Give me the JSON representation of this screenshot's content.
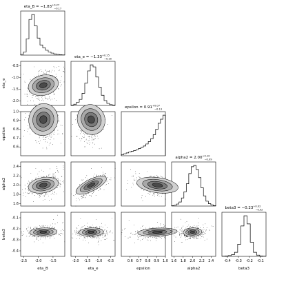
{
  "chart_data": {
    "type": "corner",
    "params": [
      {
        "name": "eta_B",
        "range": [
          -2.6,
          -1.1
        ],
        "ticks": [
          -2.5,
          -2.0,
          -1.5,
          -1.0
        ],
        "tick_labels": [
          "-2.5",
          "-2.0",
          "-1.5",
          "-1.0"
        ],
        "median": -1.83,
        "plus": 0.27,
        "minus": 0.17,
        "title_main": "eta_B = −1.83",
        "title_sup": "+0.27",
        "title_sub": "−0.17"
      },
      {
        "name": "eta_e",
        "range": [
          -2.2,
          -0.3
        ],
        "ticks": [
          -2.0,
          -1.5,
          -1.0,
          -0.5
        ],
        "tick_labels": [
          "-2.0",
          "-1.5",
          "-1.0",
          "-0.5"
        ],
        "median": -1.33,
        "plus": 0.25,
        "minus": 0.25,
        "title_main": "eta_e = −1.33",
        "title_sup": "+0.25",
        "title_sub": "−0.25"
      },
      {
        "name": "epsilon",
        "range": [
          0.5,
          1.0
        ],
        "ticks": [
          0.6,
          0.7,
          0.8,
          0.9,
          1.0
        ],
        "tick_labels": [
          "0.6",
          "0.7",
          "0.8",
          "0.9",
          "1.0"
        ],
        "median": 0.91,
        "plus": 0.07,
        "minus": 0.13,
        "title_main": "epsilon = 0.91",
        "title_sup": "+0.07",
        "title_sub": "−0.13"
      },
      {
        "name": "alpha2",
        "range": [
          1.55,
          2.5
        ],
        "ticks": [
          1.6,
          1.8,
          2.0,
          2.2,
          2.4
        ],
        "tick_labels": [
          "1.6",
          "1.8",
          "2.0",
          "2.2",
          "2.4"
        ],
        "median": 2.0,
        "plus": 0.1,
        "minus": 0.09,
        "title_main": "alpha2 = 2.00",
        "title_sup": "+0.10",
        "title_sub": "−0.09"
      },
      {
        "name": "beta3",
        "range": [
          -0.45,
          -0.05
        ],
        "ticks": [
          -0.4,
          -0.3,
          -0.2,
          -0.1
        ],
        "tick_labels": [
          "-0.4",
          "-0.3",
          "-0.2",
          "-0.1"
        ],
        "median": -0.23,
        "plus": 0.02,
        "minus": 0.02,
        "title_main": "beta3 = −0.23",
        "title_sup": "+0.02",
        "title_sub": "−0.02"
      }
    ],
    "histograms": {
      "eta_B": [
        0.02,
        0.08,
        0.4,
        0.88,
        1.0,
        0.72,
        0.42,
        0.25,
        0.18,
        0.12,
        0.08,
        0.05,
        0.03,
        0.02,
        0.01,
        0.005
      ],
      "eta_e": [
        0.01,
        0.03,
        0.08,
        0.15,
        0.3,
        0.55,
        0.85,
        1.0,
        0.95,
        0.7,
        0.45,
        0.25,
        0.12,
        0.05,
        0.02,
        0.01
      ],
      "epsilon": [
        0.03,
        0.05,
        0.07,
        0.09,
        0.11,
        0.13,
        0.15,
        0.18,
        0.21,
        0.24,
        0.29,
        0.35,
        0.42,
        0.52,
        0.65,
        0.8,
        0.9,
        1.0
      ],
      "alpha2": [
        0.01,
        0.02,
        0.05,
        0.1,
        0.2,
        0.35,
        0.55,
        0.8,
        0.97,
        1.0,
        0.9,
        0.7,
        0.45,
        0.25,
        0.12,
        0.06,
        0.03,
        0.01
      ],
      "beta3": [
        0.005,
        0.01,
        0.02,
        0.04,
        0.1,
        0.3,
        0.75,
        1.0,
        0.8,
        0.35,
        0.1,
        0.03,
        0.01,
        0.005
      ]
    },
    "correlations": {
      "1-0": 0.3,
      "2-0": -0.2,
      "2-1": 0.3,
      "3-0": 0.3,
      "3-1": 0.75,
      "3-2": -0.3,
      "4-0": 0.1,
      "4-1": 0.1,
      "4-2": 0.2,
      "4-3": 0.1
    },
    "grid": false,
    "contours": "filled 2D density with scatter outliers"
  }
}
